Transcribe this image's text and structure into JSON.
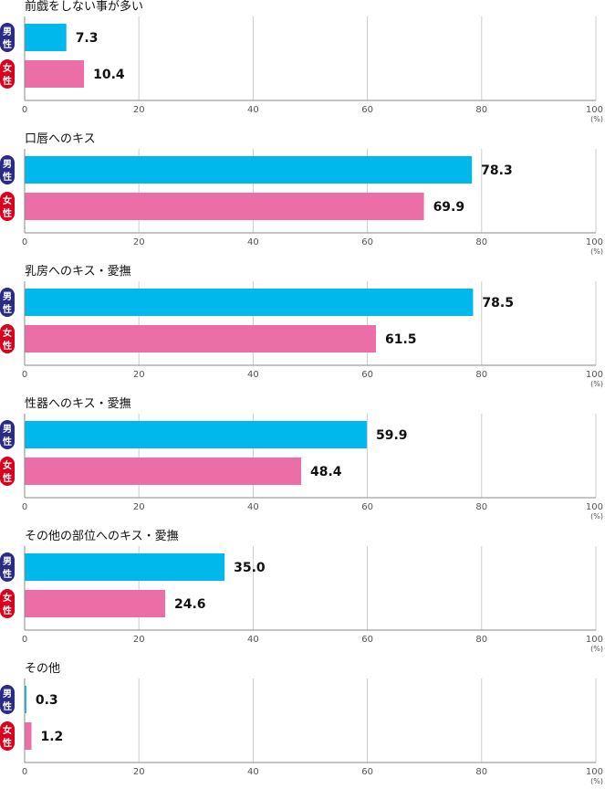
{
  "chart_data": {
    "type": "bar",
    "orientation": "horizontal",
    "unit": "(%)",
    "xlim": [
      0,
      100
    ],
    "ticks": [
      0,
      20,
      40,
      60,
      80,
      100
    ],
    "series_labels": {
      "male": [
        "男",
        "性"
      ],
      "female": [
        "女",
        "性"
      ]
    },
    "colors": {
      "male": "#00b8ec",
      "female": "#ec6ea6",
      "male_badge": "#2a2b84",
      "female_badge": "#d9001d"
    },
    "panels": [
      {
        "title": "前戯をしない事が多い",
        "male": 7.3,
        "female": 10.4
      },
      {
        "title": "口唇へのキス",
        "male": 78.3,
        "female": 69.9
      },
      {
        "title": "乳房へのキス・愛撫",
        "male": 78.5,
        "female": 61.5
      },
      {
        "title": "性器へのキス・愛撫",
        "male": 59.9,
        "female": 48.4
      },
      {
        "title": "その他の部位へのキス・愛撫",
        "male": 35.0,
        "female": 24.6
      },
      {
        "title": "その他",
        "male": 0.3,
        "female": 1.2
      }
    ]
  }
}
